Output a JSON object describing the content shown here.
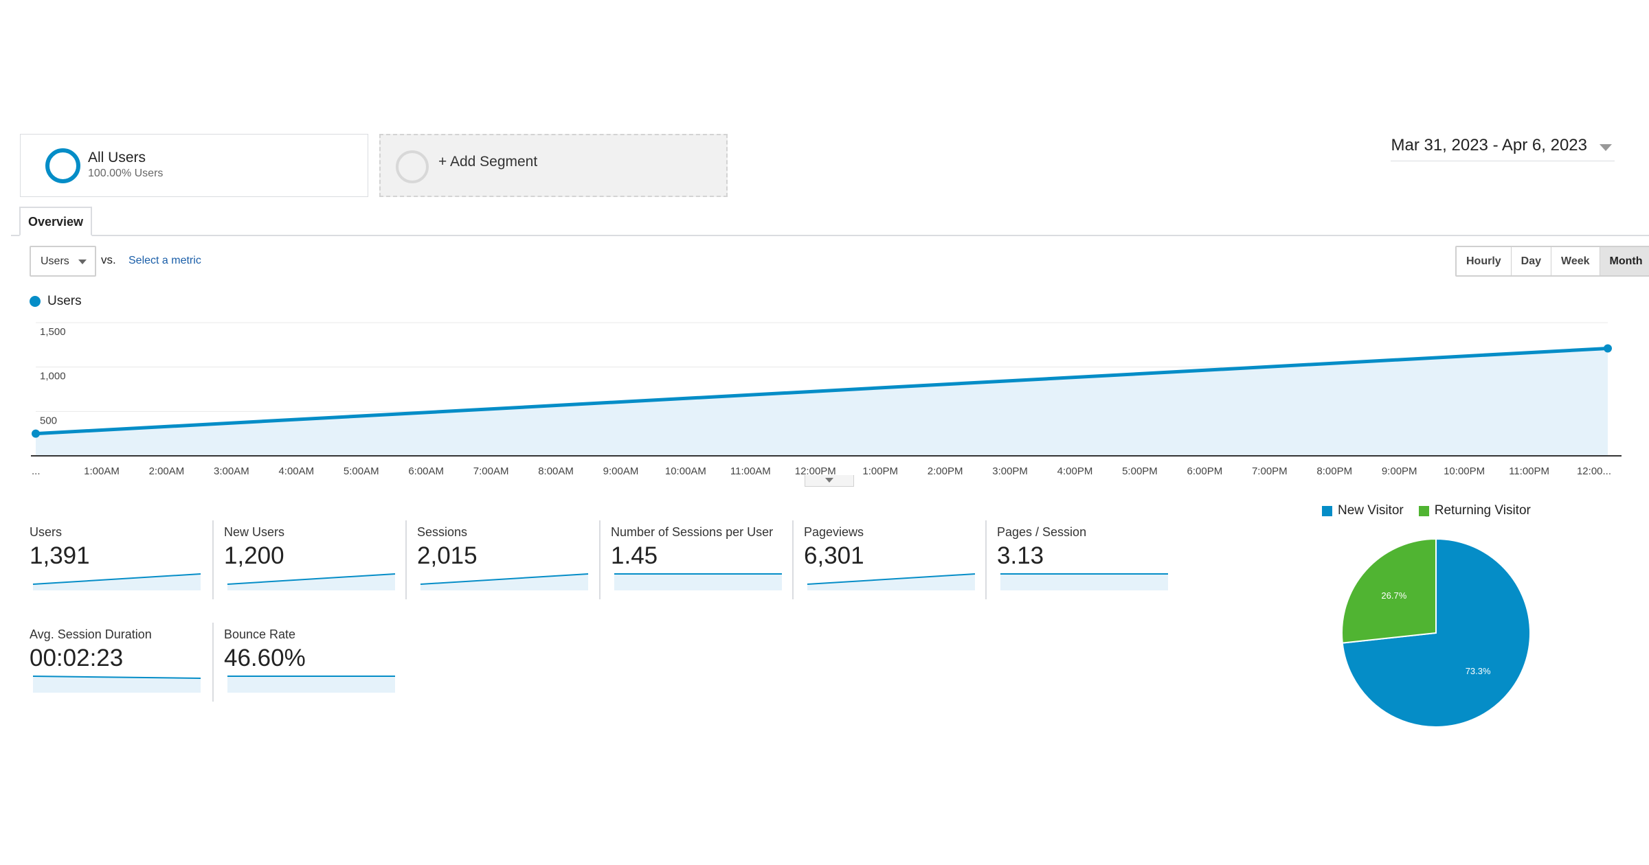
{
  "segments": {
    "all_users": {
      "title": "All Users",
      "subtitle": "100.00% Users"
    },
    "add_segment": {
      "label": "+ Add Segment"
    }
  },
  "date_range": "Mar 31, 2023 - Apr 6, 2023",
  "tabs": [
    {
      "label": "Overview",
      "active": true
    }
  ],
  "metric_selector": {
    "selected": "Users",
    "vs": "vs.",
    "select_metric": "Select a metric"
  },
  "intervals": [
    {
      "label": "Hourly",
      "active": false
    },
    {
      "label": "Day",
      "active": false
    },
    {
      "label": "Week",
      "active": false
    },
    {
      "label": "Month",
      "active": true
    }
  ],
  "colors": {
    "primary": "#058dc7",
    "fill": "#e5f2fa",
    "green": "#50b432",
    "grid": "#e8e8e8"
  },
  "chart_data": [
    {
      "type": "area",
      "series": [
        {
          "name": "Users",
          "x_start_label": "...",
          "y_start": 250,
          "y_end": 1210
        }
      ],
      "x_ticks": [
        "...",
        "1:00AM",
        "2:00AM",
        "3:00AM",
        "4:00AM",
        "5:00AM",
        "6:00AM",
        "7:00AM",
        "8:00AM",
        "9:00AM",
        "10:00AM",
        "11:00AM",
        "12:00PM",
        "1:00PM",
        "2:00PM",
        "3:00PM",
        "4:00PM",
        "5:00PM",
        "6:00PM",
        "7:00PM",
        "8:00PM",
        "9:00PM",
        "10:00PM",
        "11:00PM",
        "12:00..."
      ],
      "y_ticks": [
        "1,500",
        "1,000",
        "500"
      ],
      "ylim": [
        0,
        1500
      ],
      "grid": true,
      "legend": "top-left"
    },
    {
      "type": "pie",
      "slices": [
        {
          "label": "New Visitor",
          "value": 73.3,
          "display": "73.3%",
          "color": "#058dc7"
        },
        {
          "label": "Returning Visitor",
          "value": 26.7,
          "display": "26.7%",
          "color": "#50b432"
        }
      ],
      "legend": "top"
    }
  ],
  "scorecards": [
    {
      "label": "Users",
      "value": "1,391",
      "trend": "up"
    },
    {
      "label": "New Users",
      "value": "1,200",
      "trend": "up"
    },
    {
      "label": "Sessions",
      "value": "2,015",
      "trend": "up"
    },
    {
      "label": "Number of Sessions per User",
      "value": "1.45",
      "trend": "flat"
    },
    {
      "label": "Pageviews",
      "value": "6,301",
      "trend": "up"
    },
    {
      "label": "Pages / Session",
      "value": "3.13",
      "trend": "flat"
    },
    {
      "label": "Avg. Session Duration",
      "value": "00:02:23",
      "trend": "down"
    },
    {
      "label": "Bounce Rate",
      "value": "46.60%",
      "trend": "flat"
    }
  ]
}
